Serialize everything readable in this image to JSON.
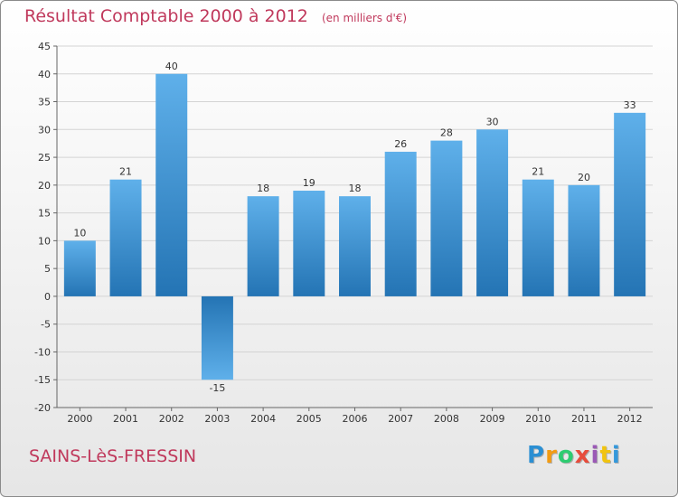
{
  "chart_data": {
    "type": "bar",
    "title": "Résultat Comptable 2000 à 2012",
    "unit_label": "(en milliers d'€)",
    "categories": [
      "2000",
      "2001",
      "2002",
      "2003",
      "2004",
      "2005",
      "2006",
      "2007",
      "2008",
      "2009",
      "2010",
      "2011",
      "2012"
    ],
    "values": [
      10,
      21,
      40,
      -15,
      18,
      19,
      18,
      26,
      28,
      30,
      21,
      20,
      33
    ],
    "value_labels": [
      "10",
      "21",
      "40",
      "-15",
      "18",
      "19",
      "18",
      "26",
      "28",
      "30",
      "21",
      "20",
      "33"
    ],
    "ylim": [
      -20,
      45
    ],
    "yticks": [
      -20,
      -15,
      -10,
      -5,
      0,
      5,
      10,
      15,
      20,
      25,
      30,
      35,
      40,
      45
    ],
    "ytick_labels": [
      "-20",
      "-15",
      "-10",
      "-5",
      "0",
      "5",
      "10",
      "15",
      "20",
      "25",
      "30",
      "35",
      "40",
      "45"
    ],
    "grid": true,
    "colors": {
      "bar_light": "#5fb0ea",
      "bar_dark": "#2474b4",
      "grid": "#d4d4d4",
      "axis": "#666666"
    }
  },
  "commune": "SAINS-LèS-FRESSIN",
  "brand": {
    "letters": [
      "P",
      "r",
      "o",
      "x",
      "i",
      "t",
      "i"
    ],
    "colors": [
      "#2b8fd3",
      "#f39c12",
      "#2ecc71",
      "#e74c3c",
      "#9b59b6",
      "#f1c40f",
      "#3498db"
    ]
  }
}
